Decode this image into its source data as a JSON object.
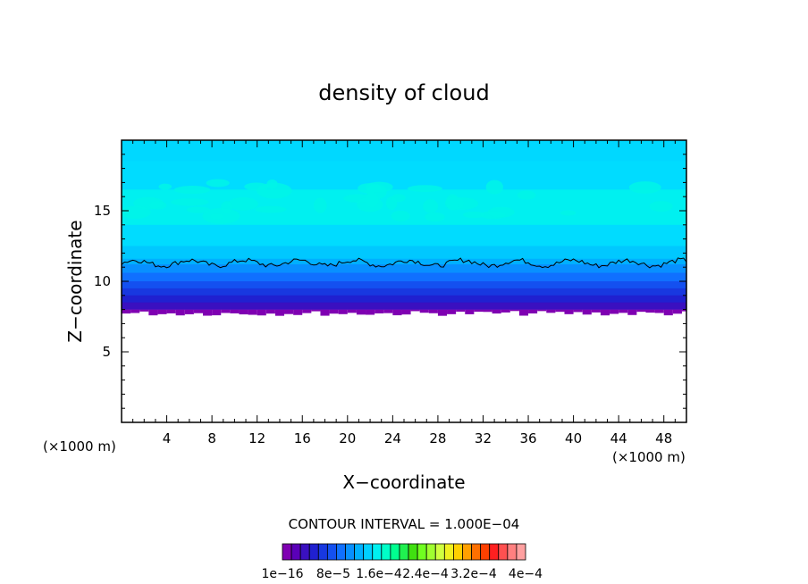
{
  "chart_data": {
    "type": "heatmap",
    "title": "density of cloud",
    "xlabel": "X−coordinate",
    "ylabel": "Z−coordinate",
    "x_unit_label": "(×1000 m)",
    "y_unit_label": "(×1000 m)",
    "xlim": [
      0,
      50
    ],
    "ylim": [
      0,
      20
    ],
    "x_ticks": [
      "4",
      "8",
      "12",
      "16",
      "20",
      "24",
      "28",
      "32",
      "36",
      "40",
      "44",
      "48"
    ],
    "y_ticks": [
      "5",
      "10",
      "15"
    ],
    "contour_interval_label": "CONTOUR INTERVAL = 1.000E−04",
    "colorbar_labels": [
      "1e−16",
      "8e−5",
      "1.6e−4",
      "2.4e−4",
      "3.2e−4",
      "4e−4"
    ],
    "colorbar_colors": [
      "#7f00b2",
      "#5a00b8",
      "#3a10c0",
      "#2020d0",
      "#1838e0",
      "#1450f0",
      "#1070ff",
      "#0890ff",
      "#00b0ff",
      "#00d0ff",
      "#00f0f0",
      "#00ffc8",
      "#00ff90",
      "#20f050",
      "#40e010",
      "#70ff20",
      "#a0ff30",
      "#d0ff40",
      "#f0f020",
      "#ffd000",
      "#ffa000",
      "#ff7000",
      "#ff4000",
      "#ff2020",
      "#ff5050",
      "#ff8080",
      "#ffa0a0"
    ],
    "cloud_base_km": 8,
    "contour_1e-4_level_km": 11.3,
    "profile": [
      {
        "z": 8.0,
        "color": "#7f00b2"
      },
      {
        "z": 8.5,
        "color": "#3a10c0"
      },
      {
        "z": 9.0,
        "color": "#2020d0"
      },
      {
        "z": 9.5,
        "color": "#1838e0"
      },
      {
        "z": 10.0,
        "color": "#1450f0"
      },
      {
        "z": 10.6,
        "color": "#1070ff"
      },
      {
        "z": 11.2,
        "color": "#0890ff"
      },
      {
        "z": 11.6,
        "color": "#00b0ff"
      },
      {
        "z": 12.5,
        "color": "#00c8ff"
      },
      {
        "z": 14.0,
        "color": "#00dcff"
      },
      {
        "z": 16.5,
        "color": "#00f0f0"
      },
      {
        "z": 18.5,
        "color": "#00dcff"
      },
      {
        "z": 20.0,
        "color": "#00d8ff"
      }
    ]
  }
}
